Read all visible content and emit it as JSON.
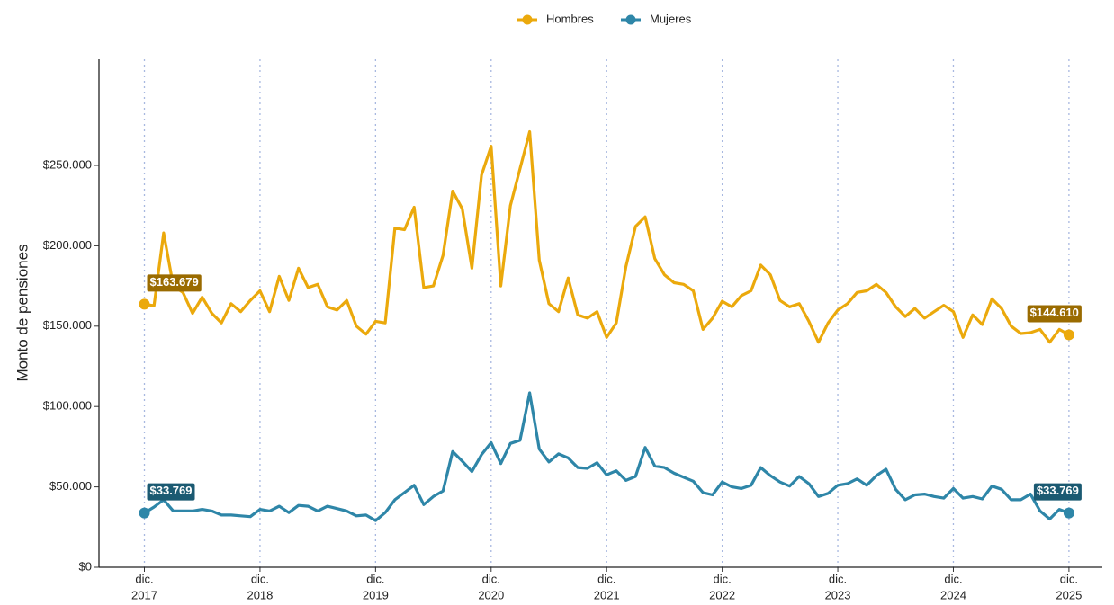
{
  "chart_data": {
    "type": "line",
    "y_label": "Monto de pensiones",
    "x": [
      "2017-12",
      "2018-01",
      "2018-02",
      "2018-03",
      "2018-04",
      "2018-05",
      "2018-06",
      "2018-07",
      "2018-08",
      "2018-09",
      "2018-10",
      "2018-11",
      "2018-12",
      "2019-01",
      "2019-02",
      "2019-03",
      "2019-04",
      "2019-05",
      "2019-06",
      "2019-07",
      "2019-08",
      "2019-09",
      "2019-10",
      "2019-11",
      "2019-12",
      "2020-01",
      "2020-02",
      "2020-03",
      "2020-04",
      "2020-05",
      "2020-06",
      "2020-07",
      "2020-08",
      "2020-09",
      "2020-10",
      "2020-11",
      "2020-12",
      "2021-01",
      "2021-02",
      "2021-03",
      "2021-04",
      "2021-05",
      "2021-06",
      "2021-07",
      "2021-08",
      "2021-09",
      "2021-10",
      "2021-11",
      "2021-12",
      "2022-01",
      "2022-02",
      "2022-03",
      "2022-04",
      "2022-05",
      "2022-06",
      "2022-07",
      "2022-08",
      "2022-09",
      "2022-10",
      "2022-11",
      "2022-12",
      "2023-01",
      "2023-02",
      "2023-03",
      "2023-04",
      "2023-05",
      "2023-06",
      "2023-07",
      "2023-08",
      "2023-09",
      "2023-10",
      "2023-11",
      "2023-12",
      "2024-01",
      "2024-02",
      "2024-03",
      "2024-04",
      "2024-05",
      "2024-06",
      "2024-07",
      "2024-08",
      "2024-09",
      "2024-10",
      "2024-11",
      "2024-12",
      "2025-01",
      "2025-02",
      "2025-03",
      "2025-04",
      "2025-05",
      "2025-06",
      "2025-07",
      "2025-08",
      "2025-09",
      "2025-10",
      "2025-11",
      "2025-12"
    ],
    "series": [
      {
        "name": "Hombres",
        "color": "#eba90c",
        "label_color": "#9a6b00",
        "values": [
          163679,
          162700,
          208000,
          175000,
          171000,
          158000,
          168000,
          158000,
          152000,
          164000,
          159000,
          166000,
          172000,
          159000,
          181000,
          166000,
          186000,
          174000,
          176000,
          162000,
          160000,
          166000,
          150000,
          145000,
          153000,
          152000,
          211000,
          210000,
          224000,
          174000,
          175000,
          194000,
          234000,
          223000,
          186000,
          244000,
          262000,
          175000,
          225000,
          248000,
          271000,
          191000,
          164000,
          159000,
          180000,
          157000,
          155000,
          159000,
          143000,
          152000,
          187000,
          212000,
          218000,
          192000,
          182000,
          177000,
          176000,
          172000,
          148000,
          155000,
          165500,
          162000,
          169000,
          172000,
          188000,
          182000,
          166000,
          162000,
          164000,
          153000,
          140000,
          152000,
          160000,
          164000,
          171000,
          172000,
          176000,
          171000,
          162000,
          156000,
          161000,
          155000,
          159000,
          163000,
          159000,
          143000,
          157000,
          151000,
          167000,
          161000,
          150000,
          145400,
          146000,
          148000,
          140000,
          148000,
          144610
        ],
        "value_labels": [
          "$163.679",
          null,
          null,
          null,
          null,
          null,
          null,
          null,
          null,
          null,
          null,
          null,
          null,
          null,
          null,
          null,
          null,
          null,
          null,
          null,
          null,
          null,
          null,
          null,
          null,
          null,
          null,
          null,
          null,
          null,
          null,
          null,
          null,
          null,
          null,
          null,
          null,
          null,
          null,
          null,
          null,
          null,
          null,
          null,
          null,
          null,
          null,
          null,
          null,
          null,
          null,
          null,
          null,
          null,
          null,
          null,
          null,
          null,
          null,
          null,
          null,
          null,
          null,
          null,
          null,
          null,
          null,
          null,
          null,
          null,
          null,
          null,
          null,
          null,
          null,
          null,
          null,
          null,
          null,
          null,
          null,
          null,
          null,
          null,
          null,
          null,
          null,
          null,
          null,
          null,
          null,
          null,
          null,
          null,
          null,
          null,
          "$144.610"
        ]
      },
      {
        "name": "Mujeres",
        "color": "#2e86a8",
        "label_color": "#1b5a72",
        "values": [
          33769,
          37500,
          42000,
          35000,
          35000,
          35000,
          36000,
          35000,
          32500,
          32500,
          32000,
          31500,
          36000,
          35000,
          38000,
          34000,
          38500,
          38000,
          35000,
          38000,
          36500,
          35000,
          32000,
          32500,
          29000,
          34000,
          42000,
          46500,
          51000,
          39000,
          44000,
          47500,
          72000,
          66000,
          59500,
          70000,
          77500,
          64500,
          77000,
          79000,
          108500,
          73500,
          65500,
          70500,
          68000,
          62000,
          61500,
          65000,
          57500,
          60000,
          54000,
          56500,
          74500,
          63000,
          62000,
          58500,
          56000,
          53500,
          46500,
          45000,
          53000,
          50000,
          49000,
          51000,
          62000,
          57000,
          53000,
          50500,
          56500,
          52000,
          44000,
          46000,
          51000,
          52000,
          55000,
          51000,
          57000,
          61000,
          48500,
          42000,
          45000,
          45500,
          44000,
          43000,
          49000,
          43000,
          44000,
          42500,
          50500,
          48500,
          42000,
          42000,
          45500,
          35000,
          30000,
          36000,
          33769
        ],
        "value_labels": [
          "$33.769",
          null,
          null,
          null,
          null,
          null,
          null,
          null,
          null,
          null,
          null,
          null,
          null,
          null,
          null,
          null,
          null,
          null,
          null,
          null,
          null,
          null,
          null,
          null,
          null,
          null,
          null,
          null,
          null,
          null,
          null,
          null,
          null,
          null,
          null,
          null,
          null,
          null,
          null,
          null,
          null,
          null,
          null,
          null,
          null,
          null,
          null,
          null,
          null,
          null,
          null,
          null,
          null,
          null,
          null,
          null,
          null,
          null,
          null,
          null,
          null,
          null,
          null,
          null,
          null,
          null,
          null,
          null,
          null,
          null,
          null,
          null,
          null,
          null,
          null,
          null,
          null,
          null,
          null,
          null,
          null,
          null,
          null,
          null,
          null,
          null,
          null,
          null,
          null,
          null,
          null,
          null,
          null,
          null,
          null,
          null,
          "$33.769"
        ]
      }
    ],
    "xlim": [
      "2017-07",
      "2026-03"
    ],
    "xticks": [
      {
        "value": "2017-12",
        "label": [
          "dic.",
          "2017"
        ]
      },
      {
        "value": "2018-12",
        "label": [
          "dic.",
          "2018"
        ]
      },
      {
        "value": "2019-12",
        "label": [
          "dic.",
          "2019"
        ]
      },
      {
        "value": "2020-12",
        "label": [
          "dic.",
          "2020"
        ]
      },
      {
        "value": "2021-12",
        "label": [
          "dic.",
          "2021"
        ]
      },
      {
        "value": "2022-12",
        "label": [
          "dic.",
          "2022"
        ]
      },
      {
        "value": "2023-12",
        "label": [
          "dic.",
          "2023"
        ]
      },
      {
        "value": "2024-12",
        "label": [
          "dic.",
          "2024"
        ]
      },
      {
        "value": "2025-12",
        "label": [
          "dic.",
          "2025"
        ]
      }
    ],
    "ylim": [
      0,
      316000
    ],
    "yticks": [
      {
        "value": 0,
        "label": "$0"
      },
      {
        "value": 50000,
        "label": "$50.000"
      },
      {
        "value": 100000,
        "label": "$100.000"
      },
      {
        "value": 150000,
        "label": "$150.000"
      },
      {
        "value": 200000,
        "label": "$200.000"
      },
      {
        "value": 250000,
        "label": "$250.000"
      }
    ],
    "grid": "x",
    "legend": "top"
  }
}
